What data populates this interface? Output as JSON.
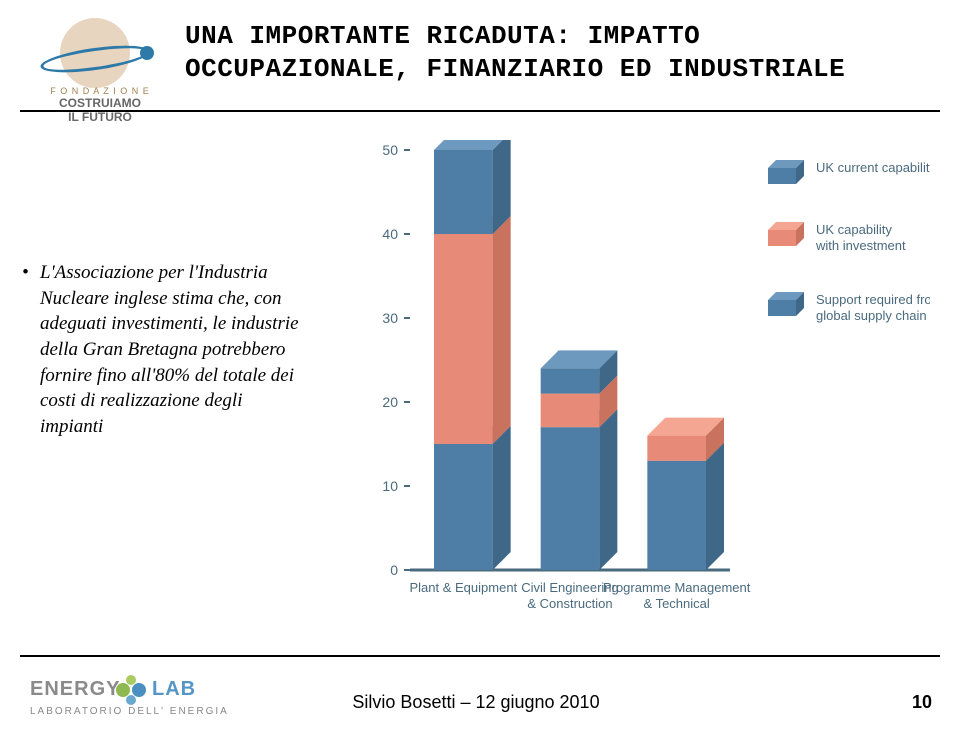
{
  "header": {
    "logo_left": {
      "line1": "F O N D A Z I O N E",
      "line2_a": "COSTRUIAMO",
      "line2_b": "IL FUTURO"
    },
    "title_line1": "UNA IMPORTANTE RICADUTA: IMPATTO",
    "title_line2": "OCCUPAZIONALE, FINANZIARIO ED INDUSTRIALE"
  },
  "bullet_text": "L'Associazione per l'Industria Nucleare inglese stima che, con adeguati investimenti, le industrie della Gran Bretagna potrebbero fornire fino all'80% del totale dei costi di realizzazione degli impianti",
  "chart": {
    "type": "3d-stacked-bar",
    "ylim": [
      0,
      50
    ],
    "yticks": [
      0,
      10,
      20,
      30,
      40,
      50
    ],
    "y_tick_color": "#4a6a7e",
    "background_color": "#ffffff",
    "categories": [
      {
        "label_line1": "Plant & Equipment",
        "label_line2": ""
      },
      {
        "label_line1": "Civil Engineering",
        "label_line2": "& Construction"
      },
      {
        "label_line1": "Programme Management",
        "label_line2": "& Technical"
      }
    ],
    "series": [
      {
        "name": "UK current capability",
        "color_top": "#6d99be",
        "color_front": "#4e7ea6",
        "color_side": "#3e6788"
      },
      {
        "name": "UK capability with investment",
        "color_top": "#f5a693",
        "color_front": "#e78a77",
        "color_side": "#c9735f"
      },
      {
        "name": "Support required from global supply chain",
        "color_top": "#6d99be",
        "color_front": "#4e7ea6",
        "color_side": "#3e6788"
      }
    ],
    "stacks": [
      {
        "segments": [
          15,
          25,
          10
        ]
      },
      {
        "segments": [
          17,
          4,
          3
        ]
      },
      {
        "segments": [
          13,
          3,
          0
        ]
      }
    ],
    "bar_width": 0.55,
    "depth": 18,
    "legend": [
      {
        "label": "UK current capability",
        "lines": [
          "UK current capability"
        ]
      },
      {
        "label": "UK capability with investment",
        "lines": [
          "UK capability",
          "with investment"
        ]
      },
      {
        "label": "Support required from global supply chain",
        "lines": [
          "Support required from",
          "global supply chain"
        ]
      }
    ]
  },
  "footer": {
    "logo_right_brand_a": "ENERGY",
    "logo_right_brand_b": "LAB",
    "logo_right_sub": "LABORATORIO  DELL' ENERGIA",
    "center_text": "Silvio Bosetti – 12 giugno 2010",
    "page_number": "10"
  }
}
